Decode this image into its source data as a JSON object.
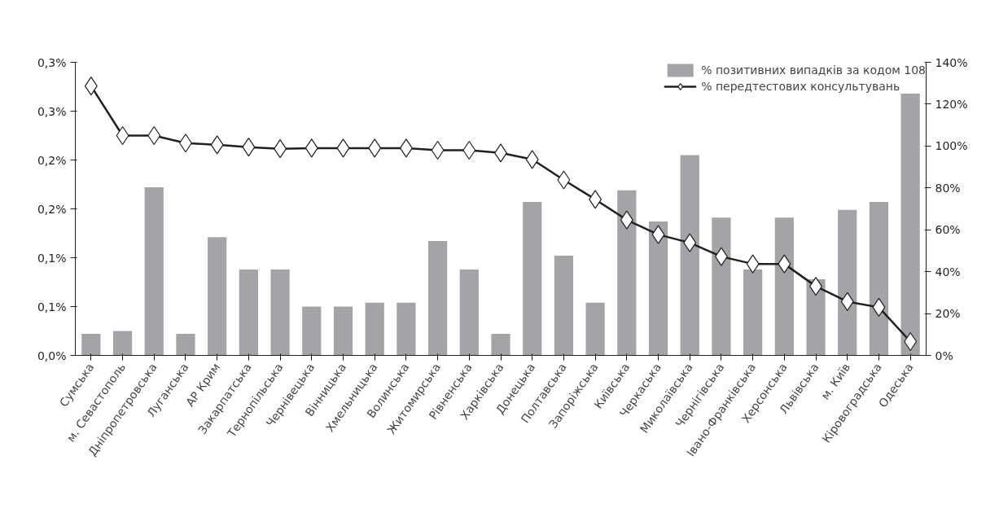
{
  "chart_data": {
    "type": "bar",
    "categories": [
      "Сумська",
      "м. Севастополь",
      "Дніпропетровська",
      "Луганська",
      "АР Крим",
      "Закарпатська",
      "Тернопільська",
      "Чернівецька",
      "Вінницька",
      "Хмельницька",
      "Волинська",
      "Житомирська",
      "Рівненська",
      "Харківська",
      "Донецька",
      "Полтавська",
      "Запоріжська",
      "Київська",
      "Черкаська",
      "Миколаївська",
      "Чернігівська",
      "Івано-Франківська",
      "Херсонська",
      "Львівська",
      "м. Київ",
      "Кіровоградська",
      "Одеська"
    ],
    "series": [
      {
        "name": "% позитивних випадків за кодом 108",
        "color": "#a3a4a8",
        "values": [
          0.022,
          0.025,
          0.172,
          0.022,
          0.121,
          0.088,
          0.088,
          0.05,
          0.05,
          0.054,
          0.054,
          0.117,
          0.088,
          0.022,
          0.157,
          0.102,
          0.054,
          0.169,
          0.137,
          0.205,
          0.141,
          0.088,
          0.141,
          0.078,
          0.149,
          0.157,
          0.268
        ]
      },
      {
        "name": "% передтестових консультувань",
        "type": "line",
        "axis": "y2",
        "color": "#231f20",
        "marker": "diamond",
        "values": [
          128.7,
          105,
          105,
          101.4,
          100.6,
          99.5,
          98.7,
          99,
          99,
          99,
          99,
          98,
          98,
          96.7,
          93.6,
          83.8,
          74.5,
          64.7,
          57.7,
          53.8,
          47.2,
          43.7,
          43.7,
          33,
          25.7,
          23,
          6.6
        ]
      }
    ],
    "ylim": [
      0,
      0.3
    ],
    "yticks": [
      {
        "value": 0,
        "label": "0,0%"
      },
      {
        "value": 0.05,
        "label": "0,1%"
      },
      {
        "value": 0.1,
        "label": "0,1%"
      },
      {
        "value": 0.15,
        "label": "0,2%"
      },
      {
        "value": 0.2,
        "label": "0,2%"
      },
      {
        "value": 0.25,
        "label": "0,3%"
      },
      {
        "value": 0.3,
        "label": "0,3%"
      }
    ],
    "y2lim": [
      0,
      140
    ],
    "y2ticks": [
      {
        "value": 0,
        "label": "0%"
      },
      {
        "value": 20,
        "label": "20%"
      },
      {
        "value": 40,
        "label": "40%"
      },
      {
        "value": 60,
        "label": "60%"
      },
      {
        "value": 80,
        "label": "80%"
      },
      {
        "value": 100,
        "label": "100%"
      },
      {
        "value": 120,
        "label": "120%"
      },
      {
        "value": 140,
        "label": "140%"
      }
    ],
    "grid": false,
    "legend": "top right"
  }
}
